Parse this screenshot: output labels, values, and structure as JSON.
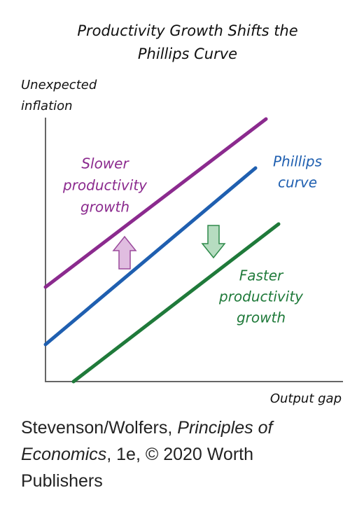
{
  "title": [
    "Productivity Growth Shifts the",
    "Phillips Curve"
  ],
  "y_axis_label": [
    "Unexpected",
    "inflation"
  ],
  "x_axis_label": "Output gap",
  "curves": [
    {
      "label": [
        "Slower",
        "productivity",
        "growth"
      ]
    },
    {
      "label": [
        "Phillips",
        "curve"
      ]
    },
    {
      "label": [
        "Faster",
        "productivity",
        "growth"
      ]
    }
  ],
  "caption": {
    "author": "Stevenson/Wolfers, ",
    "book": "Principles of Economics",
    "rest": ", 1e, © 2020 Worth Publishers"
  }
}
